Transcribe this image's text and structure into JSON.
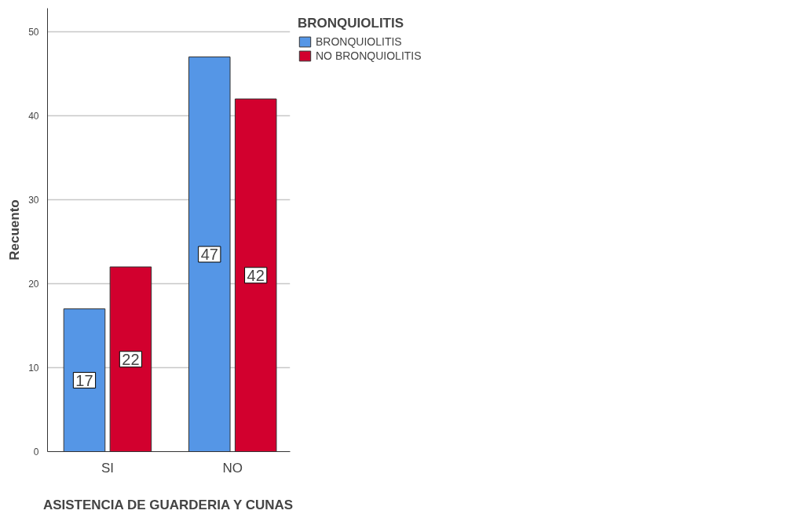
{
  "chart_data": {
    "type": "bar",
    "xlabel": "ASISTENCIA DE GUARDERIA Y CUNAS",
    "ylabel": "Recuento",
    "legend_title": "BRONQUIOLITIS",
    "categories": [
      "SI",
      "NO"
    ],
    "series": [
      {
        "name": "BRONQUIOLITIS",
        "color": "#5596e6",
        "values": [
          17,
          47
        ]
      },
      {
        "name": "NO BRONQUIOLITIS",
        "color": "#d2002e",
        "values": [
          22,
          42
        ]
      }
    ],
    "ylim": [
      0,
      52.8
    ],
    "yticks": [
      0,
      10,
      20,
      30,
      40,
      50
    ],
    "grid": "y",
    "legend": "top right",
    "data_labels": true
  }
}
